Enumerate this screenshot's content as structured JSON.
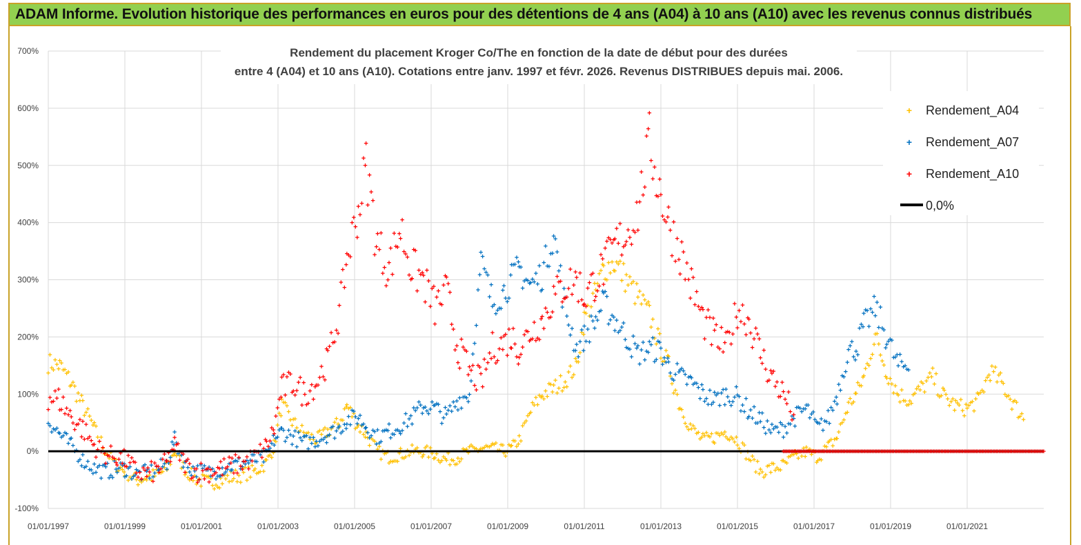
{
  "banner": {
    "text": "ADAM Informe. Evolution historique des performances en euros pour des détentions de 4 ans (A04) à 10 ans (A10) avec les revenus connus distribués"
  },
  "colors": {
    "banner_bg": "#92d050",
    "A04": "#ffc000",
    "A07": "#0070c0",
    "A10": "#ff0000",
    "zero": "#000000"
  },
  "chart_data": {
    "type": "scatter",
    "title_lines": [
      "Rendement du placement Kroger Co/The en fonction de la date de début pour des durées",
      "entre 4 (A04) et 10 ans (A10). Cotations entre janv. 1997 et févr. 2026. Revenus DISTRIBUES depuis mai. 2006."
    ],
    "ylim": [
      -100,
      700
    ],
    "xlim": [
      1997.0,
      2023.0
    ],
    "y_ticks": [
      "700%",
      "600%",
      "500%",
      "400%",
      "300%",
      "200%",
      "100%",
      "0%",
      "-100%"
    ],
    "x_ticks": [
      "01/01/1997",
      "01/01/1999",
      "01/01/2001",
      "01/01/2003",
      "01/01/2005",
      "01/01/2007",
      "01/01/2009",
      "01/01/2011",
      "01/01/2013",
      "01/01/2015",
      "01/01/2017",
      "01/01/2019",
      "01/01/2021"
    ],
    "grid": true,
    "legend_position": "top-right",
    "legend": [
      "Rendement_A04",
      "Rendement_A07",
      "Rendement_A10",
      "0,0%"
    ],
    "series": [
      {
        "name": "Rendement_A04",
        "x": [
          1997.0,
          1997.3,
          1997.6,
          1997.9,
          1998.2,
          1998.5,
          1998.8,
          1999.0,
          1999.3,
          1999.6,
          1999.9,
          2000.1,
          2000.3,
          2000.6,
          2000.9,
          2001.2,
          2001.5,
          2001.8,
          2002.1,
          2002.4,
          2002.7,
          2002.9,
          2003.1,
          2003.4,
          2003.7,
          2004.0,
          2004.3,
          2004.6,
          2004.8,
          2005.1,
          2005.3,
          2005.6,
          2005.9,
          2006.2,
          2006.5,
          2006.8,
          2007.1,
          2007.4,
          2007.7,
          2008.0,
          2008.3,
          2008.6,
          2008.9,
          2009.1,
          2009.3,
          2009.6,
          2009.9,
          2010.2,
          2010.5,
          2010.8,
          2011.0,
          2011.3,
          2011.5,
          2011.8,
          2012.1,
          2012.4,
          2012.7,
          2013.0,
          2013.2,
          2013.5,
          2013.8,
          2014.1,
          2014.4,
          2014.7,
          2015.0,
          2015.3,
          2015.6,
          2015.9,
          2016.2,
          2016.5,
          2016.8,
          2017.1,
          2017.4,
          2017.6,
          2017.9,
          2018.1,
          2018.3,
          2018.6,
          2018.9,
          2019.2,
          2019.5,
          2019.8,
          2020.1,
          2020.4,
          2020.7,
          2021.0,
          2021.3,
          2021.6,
          2021.9,
          2022.2
        ],
        "y": [
          155,
          150,
          120,
          80,
          40,
          0,
          -25,
          -35,
          -50,
          -45,
          -40,
          -30,
          0,
          -35,
          -50,
          -55,
          -50,
          -45,
          -40,
          -35,
          -20,
          10,
          80,
          50,
          30,
          20,
          35,
          50,
          80,
          45,
          30,
          0,
          -10,
          -5,
          0,
          0,
          -5,
          -15,
          -10,
          0,
          5,
          5,
          0,
          5,
          20,
          70,
          100,
          110,
          125,
          150,
          230,
          280,
          320,
          330,
          300,
          270,
          240,
          180,
          150,
          80,
          40,
          20,
          25,
          35,
          20,
          -10,
          -35,
          -30,
          -25,
          -10,
          0,
          -10,
          10,
          25,
          80,
          100,
          130,
          200,
          140,
          100,
          90,
          110,
          130,
          95,
          80,
          75,
          90,
          140,
          120,
          85
        ],
        "y_end": 55
      },
      {
        "name": "Rendement_A07",
        "x": [
          1997.0,
          1997.3,
          1997.6,
          1997.9,
          1998.2,
          1998.5,
          1998.8,
          1999.0,
          1999.3,
          1999.6,
          1999.9,
          2000.1,
          2000.3,
          2000.6,
          2000.9,
          2001.2,
          2001.5,
          2001.8,
          2002.1,
          2002.4,
          2002.7,
          2002.9,
          2003.1,
          2003.4,
          2003.7,
          2004.0,
          2004.3,
          2004.6,
          2004.8,
          2005.1,
          2005.3,
          2005.6,
          2005.9,
          2006.2,
          2006.5,
          2006.8,
          2007.1,
          2007.4,
          2007.7,
          2008.0,
          2008.3,
          2008.6,
          2008.9,
          2009.1,
          2009.3,
          2009.6,
          2009.9,
          2010.2,
          2010.5,
          2010.8,
          2011.0,
          2011.3,
          2011.5,
          2011.8,
          2012.1,
          2012.4,
          2012.7,
          2013.0,
          2013.2,
          2013.5,
          2013.8,
          2014.1,
          2014.4,
          2014.7,
          2015.0,
          2015.3,
          2015.6,
          2015.9,
          2016.2,
          2016.5,
          2016.8,
          2017.1,
          2017.4,
          2017.6,
          2017.9,
          2018.1,
          2018.3,
          2018.6,
          2018.9,
          2019.2
        ],
        "y": [
          55,
          30,
          10,
          -15,
          -30,
          -35,
          -30,
          -30,
          -40,
          -38,
          -30,
          -20,
          20,
          -25,
          -35,
          -38,
          -30,
          -25,
          -20,
          -15,
          -10,
          20,
          35,
          25,
          15,
          20,
          30,
          40,
          55,
          60,
          45,
          25,
          35,
          45,
          60,
          80,
          75,
          60,
          90,
          100,
          330,
          260,
          280,
          300,
          320,
          290,
          310,
          380,
          250,
          180,
          200,
          230,
          260,
          230,
          200,
          170,
          180,
          175,
          150,
          130,
          120,
          100,
          90,
          100,
          95,
          70,
          55,
          35,
          40,
          60,
          75,
          40,
          60,
          100,
          175,
          180,
          220,
          250,
          200,
          150
        ],
        "y_end": 150
      },
      {
        "name": "Rendement_A10",
        "x": [
          1997.0,
          1997.3,
          1997.6,
          1997.9,
          1998.2,
          1998.5,
          1998.8,
          1999.0,
          1999.3,
          1999.6,
          1999.9,
          2000.1,
          2000.3,
          2000.6,
          2000.9,
          2001.2,
          2001.5,
          2001.8,
          2002.1,
          2002.4,
          2002.7,
          2002.9,
          2003.1,
          2003.4,
          2003.7,
          2004.0,
          2004.3,
          2004.6,
          2004.8,
          2005.1,
          2005.3,
          2005.6,
          2005.9,
          2006.2,
          2006.5,
          2006.8,
          2007.1,
          2007.4,
          2007.7,
          2008.0,
          2008.3,
          2008.6,
          2008.9,
          2009.1,
          2009.3,
          2009.6,
          2009.9,
          2010.2,
          2010.5,
          2010.8,
          2011.0,
          2011.3,
          2011.5,
          2011.8,
          2012.1,
          2012.4,
          2012.7,
          2013.0,
          2013.2,
          2013.5,
          2013.8,
          2014.1,
          2014.4,
          2014.7,
          2015.0,
          2015.3,
          2015.6,
          2015.9,
          2016.2
        ],
        "y": [
          95,
          90,
          60,
          40,
          10,
          -5,
          -10,
          -15,
          -35,
          -40,
          -30,
          -20,
          10,
          -25,
          -35,
          -35,
          -30,
          -25,
          -20,
          -10,
          10,
          40,
          110,
          120,
          100,
          120,
          160,
          240,
          340,
          420,
          500,
          360,
          320,
          390,
          320,
          300,
          250,
          280,
          180,
          140,
          120,
          180,
          190,
          200,
          180,
          210,
          230,
          270,
          290,
          300,
          270,
          300,
          320,
          360,
          380,
          420,
          540,
          450,
          400,
          350,
          290,
          230,
          200,
          180,
          250,
          230,
          170,
          130,
          100
        ],
        "y_end": 60
      }
    ]
  }
}
